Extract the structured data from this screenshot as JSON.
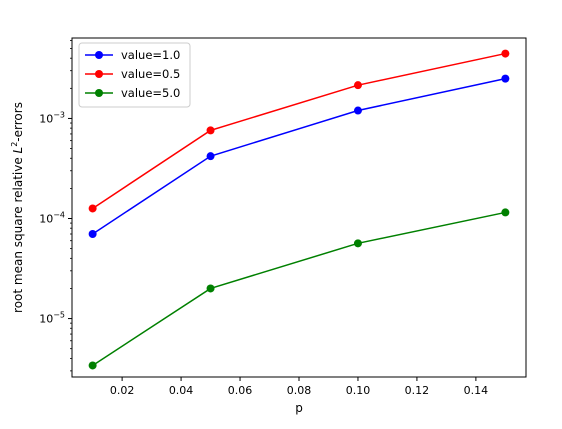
{
  "chart_data": {
    "type": "line",
    "title": "",
    "xlabel": "p",
    "ylabel_text": "root mean square relative ",
    "ylabel_math_base": "L",
    "ylabel_math_sup": "2",
    "ylabel_suffix": "-errors",
    "yscale": "log",
    "xlim": [
      0.003,
      0.157
    ],
    "ylim_log10": [
      -5.584,
      -2.196
    ],
    "x_ticks": [
      0.02,
      0.04,
      0.06,
      0.08,
      0.1,
      0.12,
      0.14
    ],
    "x_tick_labels": [
      "0.02",
      "0.04",
      "0.06",
      "0.08",
      "0.10",
      "0.12",
      "0.14"
    ],
    "y_major_ticks": [
      {
        "exp": -5,
        "base": "10",
        "sup": "−5"
      },
      {
        "exp": -4,
        "base": "10",
        "sup": "−4"
      },
      {
        "exp": -3,
        "base": "10",
        "sup": "−3"
      }
    ],
    "grid": false,
    "legend_placement": "upper-left",
    "x": [
      0.01,
      0.05,
      0.1,
      0.15
    ],
    "series": [
      {
        "name": "value=1.0",
        "color": "#0000ff",
        "marker": "circle",
        "values": [
          7e-05,
          0.00042,
          0.0012,
          0.0025
        ]
      },
      {
        "name": "value=0.5",
        "color": "#ff0000",
        "marker": "circle",
        "values": [
          0.000126,
          0.00076,
          0.00215,
          0.00445
        ]
      },
      {
        "name": "value=5.0",
        "color": "#008000",
        "marker": "circle",
        "values": [
          3.4e-06,
          2e-05,
          5.65e-05,
          0.000115
        ]
      }
    ]
  }
}
